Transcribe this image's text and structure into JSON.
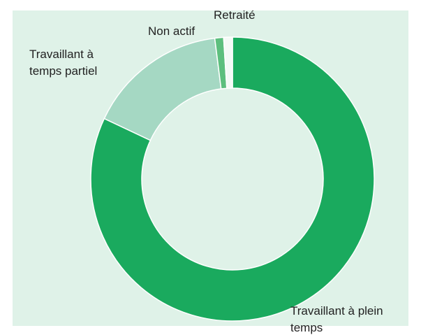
{
  "chart_data": {
    "type": "donut",
    "categories": [
      "Travaillant à plein temps",
      "Travaillant à temps partiel",
      "Non actif",
      "Retraité"
    ],
    "values": [
      82,
      16,
      1,
      1
    ],
    "colors": [
      "#1aaa5e",
      "#a5d8c3",
      "#5dbf7e",
      "#f4faf6"
    ]
  }
}
